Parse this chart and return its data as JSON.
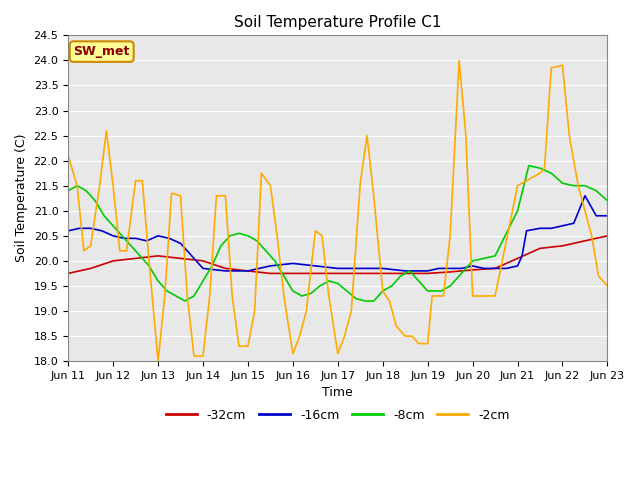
{
  "title": "Soil Temperature Profile C1",
  "xlabel": "Time",
  "ylabel": "Soil Temperature (C)",
  "ylim": [
    18.0,
    24.5
  ],
  "yticks": [
    18.0,
    18.5,
    19.0,
    19.5,
    20.0,
    20.5,
    21.0,
    21.5,
    22.0,
    22.5,
    23.0,
    23.5,
    24.0,
    24.5
  ],
  "bg_color": "#e8e8e8",
  "legend_label": "SW_met",
  "legend_box_color": "#ffff99",
  "legend_box_edge": "#cc8800",
  "series": {
    "-32cm": {
      "color": "#cc0000",
      "x": [
        0,
        0.5,
        1.0,
        1.5,
        2.0,
        2.5,
        3.0,
        3.5,
        4.0,
        4.5,
        5.0,
        5.5,
        6.0,
        6.5,
        7.0,
        7.5,
        8.0,
        8.5,
        9.0,
        9.5,
        10.0,
        10.25,
        10.5,
        11.0,
        11.25,
        11.5,
        11.75,
        12.0
      ],
      "y": [
        19.75,
        19.85,
        20.0,
        20.05,
        20.1,
        20.05,
        20.0,
        19.85,
        19.8,
        19.75,
        19.75,
        19.75,
        19.75,
        19.75,
        19.75,
        19.75,
        19.75,
        19.78,
        19.82,
        19.85,
        20.05,
        20.15,
        20.25,
        20.3,
        20.35,
        20.4,
        20.45,
        20.5
      ]
    },
    "-16cm": {
      "color": "#0000cc",
      "x": [
        0,
        0.25,
        0.5,
        0.75,
        1.0,
        1.25,
        1.5,
        1.75,
        2.0,
        2.25,
        2.5,
        2.75,
        3.0,
        3.5,
        4.0,
        4.5,
        5.0,
        5.5,
        6.0,
        6.5,
        7.0,
        7.5,
        7.75,
        8.0,
        8.25,
        8.5,
        8.75,
        9.0,
        9.25,
        9.5,
        9.75,
        10.0,
        10.1,
        10.2,
        10.5,
        10.75,
        11.0,
        11.25,
        11.5,
        11.75,
        12.0
      ],
      "y": [
        20.6,
        20.65,
        20.65,
        20.6,
        20.5,
        20.45,
        20.45,
        20.4,
        20.5,
        20.45,
        20.35,
        20.1,
        19.85,
        19.8,
        19.8,
        19.9,
        19.95,
        19.9,
        19.85,
        19.85,
        19.85,
        19.8,
        19.8,
        19.8,
        19.85,
        19.85,
        19.85,
        19.9,
        19.85,
        19.85,
        19.85,
        19.9,
        20.1,
        20.6,
        20.65,
        20.65,
        20.7,
        20.75,
        21.3,
        20.9,
        20.9
      ]
    },
    "-8cm": {
      "color": "#00cc00",
      "x": [
        0,
        0.2,
        0.4,
        0.6,
        0.8,
        1.0,
        1.2,
        1.4,
        1.6,
        1.8,
        2.0,
        2.2,
        2.4,
        2.6,
        2.8,
        3.0,
        3.2,
        3.4,
        3.6,
        3.8,
        4.0,
        4.2,
        4.4,
        4.6,
        4.8,
        5.0,
        5.2,
        5.4,
        5.6,
        5.8,
        6.0,
        6.2,
        6.4,
        6.6,
        6.8,
        7.0,
        7.2,
        7.4,
        7.6,
        7.8,
        8.0,
        8.1,
        8.2,
        8.3,
        8.5,
        8.7,
        8.9,
        9.0,
        9.5,
        10.0,
        10.25,
        10.5,
        10.75,
        11.0,
        11.25,
        11.5,
        11.75,
        12.0
      ],
      "y": [
        21.4,
        21.5,
        21.4,
        21.2,
        20.9,
        20.7,
        20.5,
        20.3,
        20.1,
        19.9,
        19.6,
        19.4,
        19.3,
        19.2,
        19.3,
        19.6,
        19.9,
        20.3,
        20.5,
        20.55,
        20.5,
        20.4,
        20.2,
        20.0,
        19.7,
        19.4,
        19.3,
        19.35,
        19.5,
        19.6,
        19.55,
        19.4,
        19.25,
        19.2,
        19.2,
        19.4,
        19.5,
        19.7,
        19.8,
        19.6,
        19.4,
        19.4,
        19.4,
        19.4,
        19.5,
        19.7,
        19.9,
        20.0,
        20.1,
        21.0,
        21.9,
        21.85,
        21.75,
        21.55,
        21.5,
        21.5,
        21.4,
        21.2
      ]
    },
    "-2cm": {
      "color": "#ffaa00",
      "x": [
        0,
        0.2,
        0.35,
        0.5,
        0.7,
        0.85,
        1.0,
        1.15,
        1.3,
        1.5,
        1.65,
        1.8,
        2.0,
        2.15,
        2.3,
        2.5,
        2.65,
        2.8,
        3.0,
        3.15,
        3.3,
        3.5,
        3.65,
        3.8,
        4.0,
        4.15,
        4.3,
        4.5,
        4.65,
        4.8,
        5.0,
        5.15,
        5.3,
        5.5,
        5.65,
        5.8,
        6.0,
        6.15,
        6.3,
        6.5,
        6.65,
        6.8,
        7.0,
        7.15,
        7.3,
        7.5,
        7.65,
        7.8,
        8.0,
        8.1,
        8.2,
        8.35,
        8.5,
        8.7,
        8.85,
        9.0,
        9.5,
        10.0,
        10.5,
        10.6,
        10.75,
        11.0,
        11.15,
        11.35,
        11.5,
        11.65,
        11.8,
        12.0
      ],
      "y": [
        22.1,
        21.5,
        20.2,
        20.3,
        21.5,
        22.6,
        21.5,
        20.2,
        20.2,
        21.6,
        21.6,
        20.0,
        18.0,
        19.3,
        21.35,
        21.3,
        19.3,
        18.1,
        18.1,
        19.3,
        21.3,
        21.3,
        19.3,
        18.3,
        18.3,
        19.0,
        21.75,
        21.5,
        20.5,
        19.3,
        18.15,
        18.5,
        19.0,
        20.6,
        20.5,
        19.3,
        18.15,
        18.5,
        19.0,
        21.55,
        22.5,
        21.3,
        19.4,
        19.2,
        18.7,
        18.5,
        18.5,
        18.35,
        18.35,
        19.3,
        19.3,
        19.3,
        20.5,
        24.0,
        22.5,
        19.3,
        19.3,
        21.5,
        21.75,
        21.85,
        23.85,
        23.9,
        22.5,
        21.5,
        21.0,
        20.5,
        19.7,
        19.5
      ]
    }
  },
  "xtick_labels": [
    "Jun 11",
    "Jun 12",
    "Jun 13",
    "Jun 14",
    "Jun 15",
    "Jun 16",
    "Jun 17",
    "Jun 18",
    "Jun 19",
    "Jun 20",
    "Jun 21",
    "Jun 22",
    "Jun 23"
  ],
  "xtick_positions": [
    0,
    1,
    2,
    3,
    4,
    5,
    6,
    7,
    8,
    9,
    10,
    11,
    12
  ],
  "legend_entries": [
    "-32cm",
    "-16cm",
    "-8cm",
    "-2cm"
  ],
  "legend_colors": [
    "#cc0000",
    "#0000cc",
    "#00cc00",
    "#ffaa00"
  ],
  "line_width": 1.2
}
